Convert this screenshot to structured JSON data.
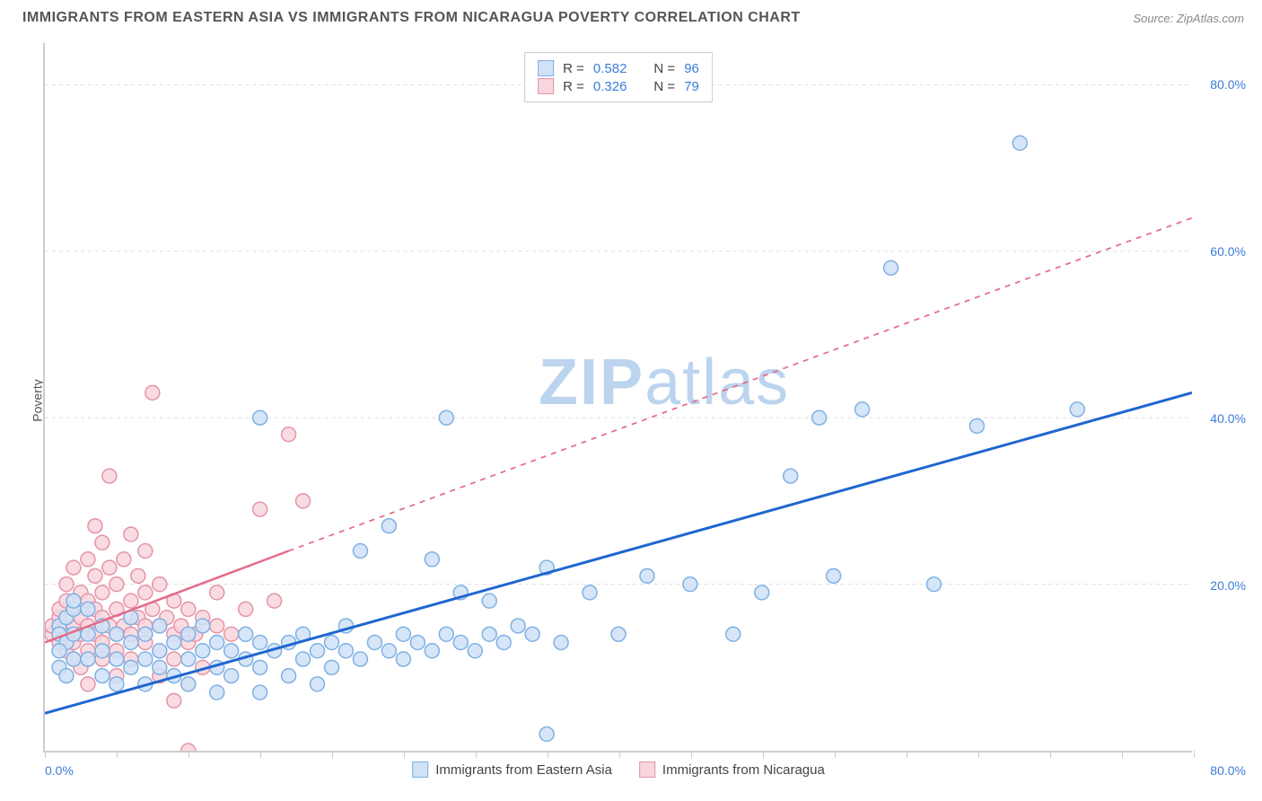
{
  "header": {
    "title": "IMMIGRANTS FROM EASTERN ASIA VS IMMIGRANTS FROM NICARAGUA POVERTY CORRELATION CHART",
    "source": "Source: ZipAtlas.com"
  },
  "chart": {
    "type": "scatter",
    "ylabel": "Poverty",
    "xlim": [
      0,
      80
    ],
    "ylim": [
      0,
      85
    ],
    "x_label_min": "0.0%",
    "x_label_max": "80.0%",
    "x_ticks": [
      0,
      5,
      10,
      15,
      20,
      25,
      30,
      35,
      40,
      45,
      50,
      55,
      60,
      65,
      70,
      75,
      80
    ],
    "y_gridlines": [
      {
        "value": 20,
        "label": "20.0%"
      },
      {
        "value": 40,
        "label": "40.0%"
      },
      {
        "value": 60,
        "label": "60.0%"
      },
      {
        "value": 80,
        "label": "80.0%"
      }
    ],
    "background_color": "#ffffff",
    "grid_color": "#dddddd",
    "axis_color": "#cccccc",
    "watermark": {
      "bold": "ZIP",
      "light": "atlas"
    },
    "marker_radius": 8,
    "marker_stroke_width": 1.5,
    "series": [
      {
        "name": "Immigrants from Eastern Asia",
        "color_fill": "#cfe2f7",
        "color_stroke": "#7fb0e3",
        "r_label": "R = ",
        "r_value": "0.582",
        "n_label": "N = ",
        "n_value": "96",
        "trendline": {
          "color": "#1f66d0",
          "width": 3,
          "solid_from": [
            0,
            4.5
          ],
          "solid_to": [
            80,
            43
          ],
          "dashed": false
        },
        "points": [
          [
            1,
            15
          ],
          [
            1,
            14
          ],
          [
            1.5,
            13
          ],
          [
            1,
            12
          ],
          [
            1.5,
            16
          ],
          [
            2,
            17
          ],
          [
            2,
            14
          ],
          [
            2,
            11
          ],
          [
            1,
            10
          ],
          [
            1.5,
            9
          ],
          [
            2,
            18
          ],
          [
            3,
            17
          ],
          [
            3,
            14
          ],
          [
            3,
            11
          ],
          [
            4,
            15
          ],
          [
            4,
            12
          ],
          [
            4,
            9
          ],
          [
            5,
            14
          ],
          [
            5,
            11
          ],
          [
            5,
            8
          ],
          [
            6,
            13
          ],
          [
            6,
            10
          ],
          [
            6,
            16
          ],
          [
            7,
            14
          ],
          [
            7,
            11
          ],
          [
            7,
            8
          ],
          [
            8,
            12
          ],
          [
            8,
            15
          ],
          [
            8,
            10
          ],
          [
            9,
            13
          ],
          [
            9,
            9
          ],
          [
            10,
            14
          ],
          [
            10,
            11
          ],
          [
            10,
            8
          ],
          [
            11,
            12
          ],
          [
            11,
            15
          ],
          [
            12,
            10
          ],
          [
            12,
            13
          ],
          [
            12,
            7
          ],
          [
            13,
            12
          ],
          [
            13,
            9
          ],
          [
            14,
            14
          ],
          [
            14,
            11
          ],
          [
            15,
            13
          ],
          [
            15,
            10
          ],
          [
            15,
            7
          ],
          [
            16,
            12
          ],
          [
            17,
            13
          ],
          [
            17,
            9
          ],
          [
            18,
            14
          ],
          [
            18,
            11
          ],
          [
            19,
            12
          ],
          [
            19,
            8
          ],
          [
            20,
            13
          ],
          [
            20,
            10
          ],
          [
            21,
            12
          ],
          [
            21,
            15
          ],
          [
            22,
            11
          ],
          [
            22,
            24
          ],
          [
            23,
            13
          ],
          [
            24,
            12
          ],
          [
            24,
            27
          ],
          [
            25,
            11
          ],
          [
            25,
            14
          ],
          [
            26,
            13
          ],
          [
            27,
            12
          ],
          [
            27,
            23
          ],
          [
            28,
            14
          ],
          [
            29,
            13
          ],
          [
            29,
            19
          ],
          [
            30,
            12
          ],
          [
            31,
            14
          ],
          [
            31,
            18
          ],
          [
            32,
            13
          ],
          [
            33,
            15
          ],
          [
            34,
            14
          ],
          [
            35,
            22
          ],
          [
            36,
            13
          ],
          [
            38,
            19
          ],
          [
            40,
            14
          ],
          [
            42,
            21
          ],
          [
            45,
            20
          ],
          [
            48,
            14
          ],
          [
            50,
            19
          ],
          [
            52,
            33
          ],
          [
            54,
            40
          ],
          [
            55,
            21
          ],
          [
            57,
            41
          ],
          [
            59,
            58
          ],
          [
            62,
            20
          ],
          [
            65,
            39
          ],
          [
            68,
            73
          ],
          [
            72,
            41
          ],
          [
            35,
            2
          ],
          [
            15,
            40
          ],
          [
            28,
            40
          ]
        ]
      },
      {
        "name": "Immigrants from Nicaragua",
        "color_fill": "#f7d6dd",
        "color_stroke": "#e593a6",
        "r_label": "R = ",
        "r_value": "0.326",
        "n_label": "N = ",
        "n_value": "79",
        "trendline": {
          "color": "#e56b88",
          "width": 2.5,
          "solid_from": [
            0,
            13
          ],
          "solid_to": [
            17,
            24
          ],
          "dashed_to": [
            80,
            64
          ]
        },
        "points": [
          [
            0.5,
            14
          ],
          [
            0.5,
            15
          ],
          [
            1,
            13
          ],
          [
            1,
            16
          ],
          [
            1,
            17
          ],
          [
            1.5,
            14
          ],
          [
            1.5,
            18
          ],
          [
            1.5,
            12
          ],
          [
            1.5,
            20
          ],
          [
            2,
            15
          ],
          [
            2,
            13
          ],
          [
            2,
            11
          ],
          [
            2,
            17
          ],
          [
            2,
            22
          ],
          [
            2.5,
            14
          ],
          [
            2.5,
            16
          ],
          [
            2.5,
            19
          ],
          [
            2.5,
            10
          ],
          [
            3,
            15
          ],
          [
            3,
            12
          ],
          [
            3,
            18
          ],
          [
            3,
            23
          ],
          [
            3,
            8
          ],
          [
            3.5,
            14
          ],
          [
            3.5,
            17
          ],
          [
            3.5,
            21
          ],
          [
            3.5,
            27
          ],
          [
            4,
            13
          ],
          [
            4,
            16
          ],
          [
            4,
            11
          ],
          [
            4,
            19
          ],
          [
            4,
            25
          ],
          [
            4.5,
            15
          ],
          [
            4.5,
            22
          ],
          [
            4.5,
            33
          ],
          [
            5,
            14
          ],
          [
            5,
            17
          ],
          [
            5,
            12
          ],
          [
            5,
            20
          ],
          [
            5,
            9
          ],
          [
            5.5,
            15
          ],
          [
            5.5,
            23
          ],
          [
            6,
            14
          ],
          [
            6,
            18
          ],
          [
            6,
            11
          ],
          [
            6,
            26
          ],
          [
            6.5,
            16
          ],
          [
            6.5,
            21
          ],
          [
            7,
            15
          ],
          [
            7,
            13
          ],
          [
            7,
            19
          ],
          [
            7,
            24
          ],
          [
            7.5,
            17
          ],
          [
            7.5,
            43
          ],
          [
            8,
            15
          ],
          [
            8,
            12
          ],
          [
            8,
            20
          ],
          [
            8,
            9
          ],
          [
            8.5,
            16
          ],
          [
            9,
            14
          ],
          [
            9,
            18
          ],
          [
            9,
            11
          ],
          [
            9,
            6
          ],
          [
            9.5,
            15
          ],
          [
            10,
            13
          ],
          [
            10,
            17
          ],
          [
            10,
            8
          ],
          [
            10.5,
            14
          ],
          [
            11,
            16
          ],
          [
            11,
            10
          ],
          [
            12,
            15
          ],
          [
            12,
            19
          ],
          [
            13,
            14
          ],
          [
            14,
            17
          ],
          [
            15,
            29
          ],
          [
            16,
            18
          ],
          [
            17,
            38
          ],
          [
            18,
            30
          ],
          [
            10,
            0
          ]
        ]
      }
    ],
    "legend_bottom": [
      {
        "label": "Immigrants from Eastern Asia",
        "fill": "#cfe2f7",
        "stroke": "#7fb0e3"
      },
      {
        "label": "Immigrants from Nicaragua",
        "fill": "#f7d6dd",
        "stroke": "#e593a6"
      }
    ]
  }
}
